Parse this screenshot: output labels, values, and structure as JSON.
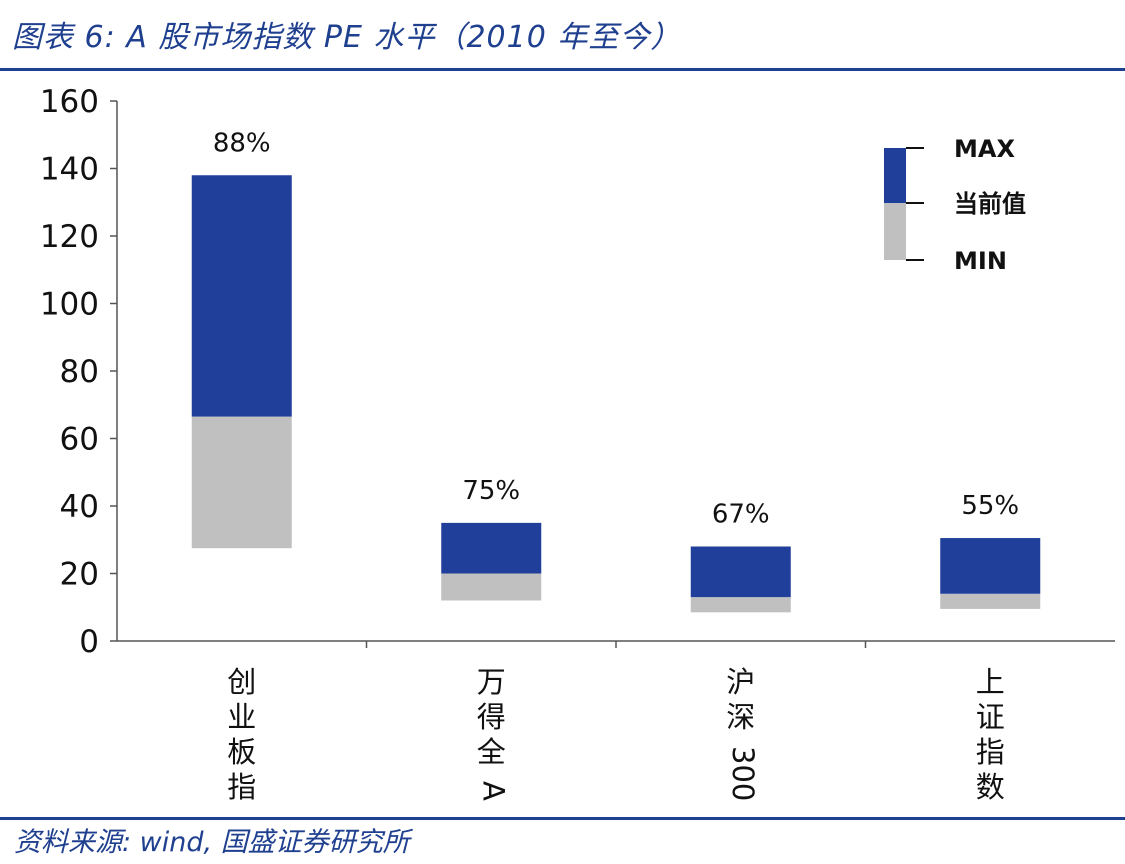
{
  "header": {
    "title": "图表 6: A 股市场指数 PE 水平（2010 年至今）"
  },
  "footer": {
    "source": "资料来源: wind, 国盛证券研究所"
  },
  "colors": {
    "upper": "#1f3f9a",
    "lower": "#c0c0c0",
    "rule": "#1f3f8f"
  },
  "chart_data": {
    "type": "bar",
    "subtype": "floating-stacked-range",
    "categories": [
      "创业板指",
      "万得全A",
      "沪深300",
      "上证指数"
    ],
    "series": [
      {
        "name": "MIN",
        "values": [
          27.5,
          12.0,
          8.5,
          9.5
        ]
      },
      {
        "name": "当前值",
        "values": [
          66.5,
          20.0,
          13.0,
          14.0
        ]
      },
      {
        "name": "MAX",
        "values": [
          138.0,
          35.0,
          28.0,
          30.5
        ]
      }
    ],
    "percentile_labels": [
      "88%",
      "75%",
      "67%",
      "55%"
    ],
    "ylim": [
      0,
      160
    ],
    "yticks": [
      "0",
      "20",
      "40",
      "60",
      "80",
      "100",
      "120",
      "140",
      "160"
    ],
    "grid": false,
    "legend": {
      "position": "top-right",
      "entries": [
        "MAX",
        "当前值",
        "MIN"
      ]
    }
  }
}
